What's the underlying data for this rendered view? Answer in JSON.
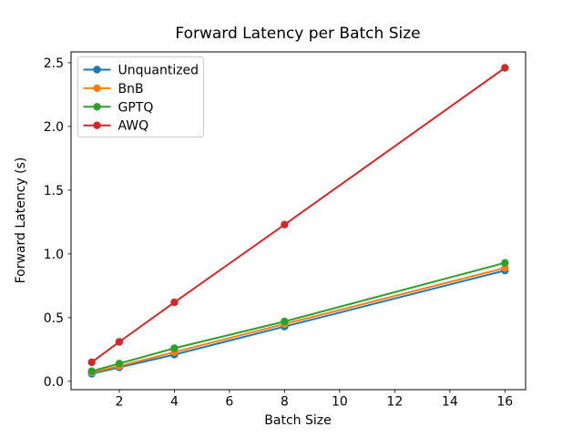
{
  "chart_data": {
    "type": "line",
    "title": "Forward Latency per Batch Size",
    "xlabel": "Batch Size",
    "ylabel": "Forward Latency (s)",
    "x": [
      1,
      2,
      4,
      8,
      16
    ],
    "series": [
      {
        "name": "Unquantized",
        "color": "#1f77b4",
        "values": [
          0.06,
          0.11,
          0.21,
          0.43,
          0.87
        ]
      },
      {
        "name": "BnB",
        "color": "#ff7f0e",
        "values": [
          0.07,
          0.12,
          0.23,
          0.45,
          0.89
        ]
      },
      {
        "name": "GPTQ",
        "color": "#2ca02c",
        "values": [
          0.08,
          0.14,
          0.26,
          0.47,
          0.93
        ]
      },
      {
        "name": "AWQ",
        "color": "#d62728",
        "values": [
          0.15,
          0.31,
          0.62,
          1.23,
          2.46
        ]
      }
    ],
    "xlim": [
      0.25,
      16.75
    ],
    "ylim": [
      -0.065,
      2.585
    ],
    "xticks": [
      2,
      4,
      6,
      8,
      10,
      12,
      14,
      16
    ],
    "xtick_labels": [
      "2",
      "4",
      "6",
      "8",
      "10",
      "12",
      "14",
      "16"
    ],
    "yticks": [
      0.0,
      0.5,
      1.0,
      1.5,
      2.0,
      2.5
    ],
    "ytick_labels": [
      "0.0",
      "0.5",
      "1.0",
      "1.5",
      "2.0",
      "2.5"
    ],
    "legend": {
      "position": "upper left",
      "entries": [
        "Unquantized",
        "BnB",
        "GPTQ",
        "AWQ"
      ]
    },
    "grid": false,
    "marker": "o",
    "spine_color": "#000000",
    "legend_border_color": "#cccccc",
    "background_color": "#ffffff"
  }
}
